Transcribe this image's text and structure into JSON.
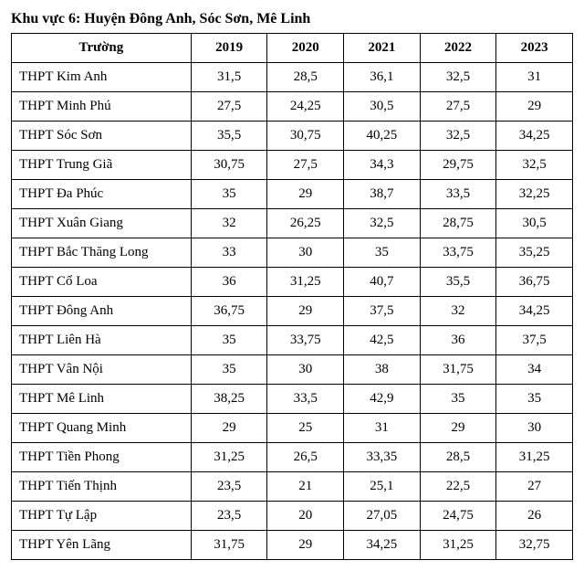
{
  "title": "Khu vực 6: Huyện Đông Anh, Sóc Sơn, Mê Linh",
  "table": {
    "type": "table",
    "columns": [
      "Trường",
      "2019",
      "2020",
      "2021",
      "2022",
      "2023"
    ],
    "col_widths_pct": [
      32,
      13.6,
      13.6,
      13.6,
      13.6,
      13.6
    ],
    "header_fontweight": "bold",
    "border_color": "#000000",
    "background_color": "#ffffff",
    "text_color": "#000000",
    "font_family": "Times New Roman",
    "font_size_pt": 12,
    "rows": [
      [
        "THPT Kim Anh",
        "31,5",
        "28,5",
        "36,1",
        "32,5",
        "31"
      ],
      [
        "THPT Minh Phú",
        "27,5",
        "24,25",
        "30,5",
        "27,5",
        "29"
      ],
      [
        "THPT Sóc Sơn",
        "35,5",
        "30,75",
        "40,25",
        "32,5",
        "34,25"
      ],
      [
        "THPT Trung Giã",
        "30,75",
        "27,5",
        "34,3",
        "29,75",
        "32,5"
      ],
      [
        "THPT Đa Phúc",
        "35",
        "29",
        "38,7",
        "33,5",
        "32,25"
      ],
      [
        "THPT Xuân Giang",
        "32",
        "26,25",
        "32,5",
        "28,75",
        "30,5"
      ],
      [
        "THPT Bắc Thăng Long",
        "33",
        "30",
        "35",
        "33,75",
        "35,25"
      ],
      [
        "THPT Cổ Loa",
        "36",
        "31,25",
        "40,7",
        "35,5",
        "36,75"
      ],
      [
        "THPT Đông Anh",
        "36,75",
        "29",
        "37,5",
        "32",
        "34,25"
      ],
      [
        "THPT Liên Hà",
        "35",
        "33,75",
        "42,5",
        "36",
        "37,5"
      ],
      [
        "THPT Vân Nội",
        "35",
        "30",
        "38",
        "31,75",
        "34"
      ],
      [
        "THPT Mê Linh",
        "38,25",
        "33,5",
        "42,9",
        "35",
        "35"
      ],
      [
        "THPT Quang Minh",
        "29",
        "25",
        "31",
        "29",
        "30"
      ],
      [
        "THPT Tiền Phong",
        "31,25",
        "26,5",
        "33,35",
        "28,5",
        "31,25"
      ],
      [
        "THPT Tiến Thịnh",
        "23,5",
        "21",
        "25,1",
        "22,5",
        "27"
      ],
      [
        "THPT Tự Lập",
        "23,5",
        "20",
        "27,05",
        "24,75",
        "26"
      ],
      [
        "THPT Yên Lãng",
        "31,75",
        "29",
        "34,25",
        "31,25",
        "32,75"
      ]
    ]
  }
}
